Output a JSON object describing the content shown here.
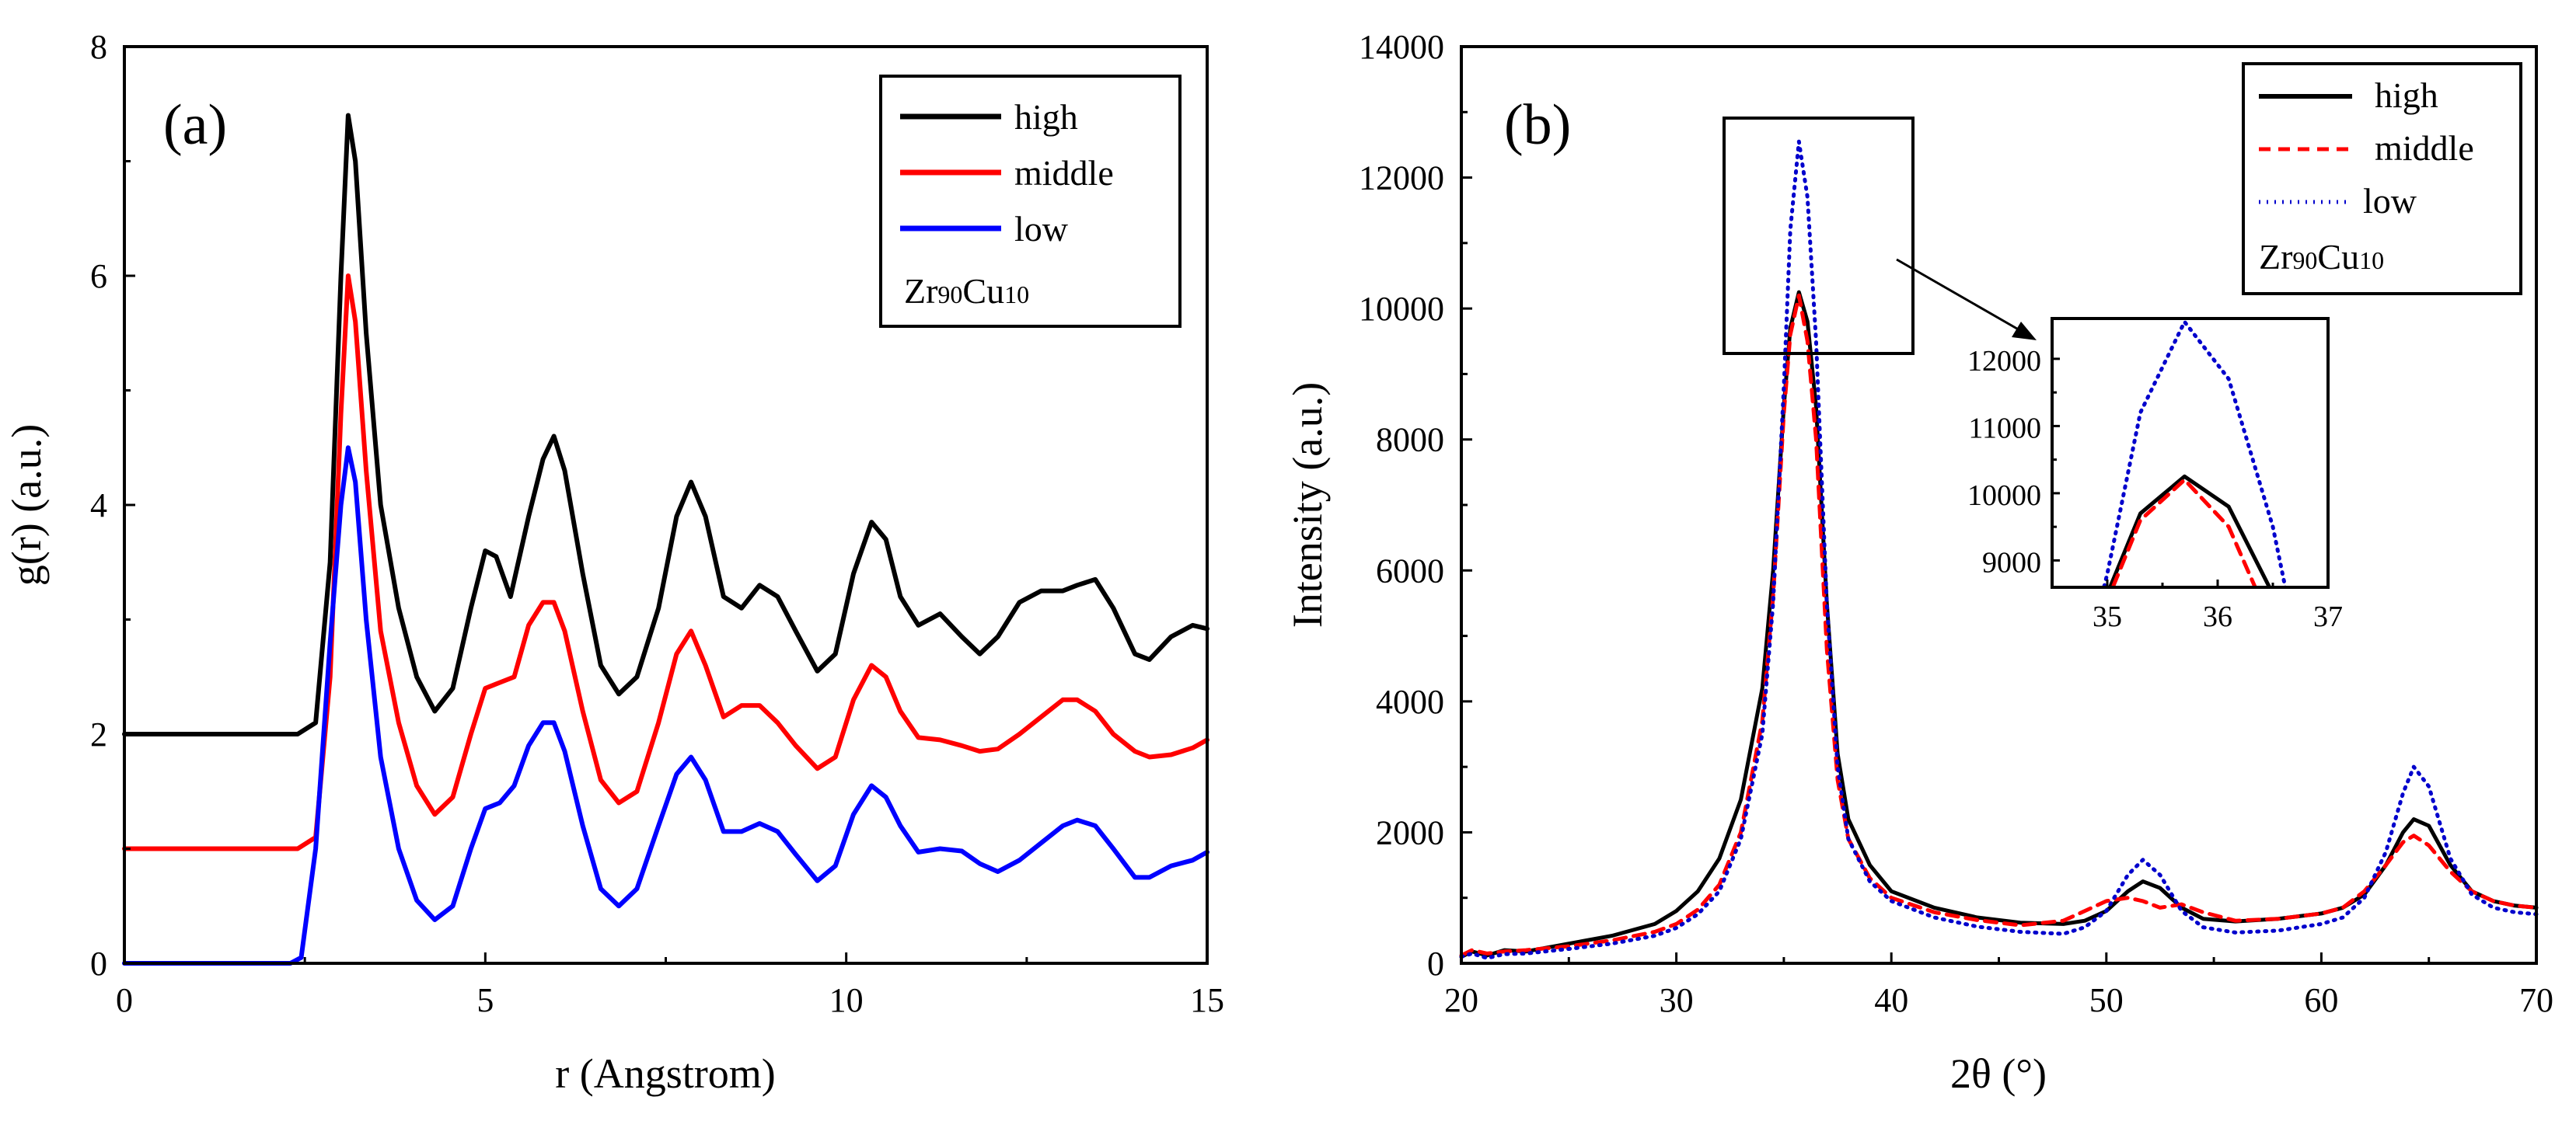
{
  "chart_data": [
    {
      "type": "line",
      "panel_label": "(a)",
      "xlabel": "r (Angstrom)",
      "ylabel": "g(r) (a.u.)",
      "xlim": [
        0,
        15
      ],
      "ylim": [
        0,
        8
      ],
      "xticks": [
        0,
        5,
        10,
        15
      ],
      "yticks": [
        0,
        2,
        4,
        6,
        8
      ],
      "legend_note": [
        "Zr",
        "90",
        "Cu",
        "10"
      ],
      "series": [
        {
          "name": "high",
          "color": "#000000",
          "style": "solid",
          "x": [
            0,
            2.4,
            2.65,
            2.85,
            3.0,
            3.1,
            3.2,
            3.35,
            3.55,
            3.8,
            4.05,
            4.3,
            4.55,
            4.8,
            5.0,
            5.15,
            5.35,
            5.6,
            5.8,
            5.95,
            6.1,
            6.35,
            6.6,
            6.85,
            7.1,
            7.4,
            7.65,
            7.85,
            8.05,
            8.3,
            8.55,
            8.8,
            9.05,
            9.3,
            9.6,
            9.85,
            10.1,
            10.35,
            10.55,
            10.75,
            11.0,
            11.3,
            11.6,
            11.85,
            12.1,
            12.4,
            12.7,
            13.0,
            13.2,
            13.45,
            13.7,
            14.0,
            14.2,
            14.5,
            14.8,
            15.0
          ],
          "y": [
            2.0,
            2.0,
            2.1,
            3.5,
            6.0,
            7.4,
            7.0,
            5.5,
            4.0,
            3.1,
            2.5,
            2.2,
            2.4,
            3.1,
            3.6,
            3.55,
            3.2,
            3.9,
            4.4,
            4.6,
            4.3,
            3.4,
            2.6,
            2.35,
            2.5,
            3.1,
            3.9,
            4.2,
            3.9,
            3.2,
            3.1,
            3.3,
            3.2,
            2.9,
            2.55,
            2.7,
            3.4,
            3.85,
            3.7,
            3.2,
            2.95,
            3.05,
            2.85,
            2.7,
            2.85,
            3.15,
            3.25,
            3.25,
            3.3,
            3.35,
            3.1,
            2.7,
            2.65,
            2.85,
            2.95,
            2.92
          ]
        },
        {
          "name": "middle",
          "color": "#ff0000",
          "style": "solid",
          "x": [
            0,
            2.4,
            2.65,
            2.85,
            3.0,
            3.1,
            3.2,
            3.35,
            3.55,
            3.8,
            4.05,
            4.3,
            4.55,
            4.8,
            5.0,
            5.2,
            5.4,
            5.6,
            5.8,
            5.95,
            6.1,
            6.35,
            6.6,
            6.85,
            7.1,
            7.4,
            7.65,
            7.85,
            8.05,
            8.3,
            8.55,
            8.8,
            9.05,
            9.3,
            9.6,
            9.85,
            10.1,
            10.35,
            10.55,
            10.75,
            11.0,
            11.3,
            11.6,
            11.85,
            12.1,
            12.4,
            12.7,
            13.0,
            13.2,
            13.45,
            13.7,
            14.0,
            14.2,
            14.5,
            14.8,
            15.0
          ],
          "y": [
            1.0,
            1.0,
            1.1,
            2.5,
            4.8,
            6.0,
            5.6,
            4.3,
            2.9,
            2.1,
            1.55,
            1.3,
            1.45,
            2.0,
            2.4,
            2.45,
            2.5,
            2.95,
            3.15,
            3.15,
            2.9,
            2.2,
            1.6,
            1.4,
            1.5,
            2.1,
            2.7,
            2.9,
            2.6,
            2.15,
            2.25,
            2.25,
            2.1,
            1.9,
            1.7,
            1.8,
            2.3,
            2.6,
            2.5,
            2.2,
            1.97,
            1.95,
            1.9,
            1.85,
            1.87,
            2.0,
            2.15,
            2.3,
            2.3,
            2.2,
            2.0,
            1.85,
            1.8,
            1.82,
            1.88,
            1.95
          ]
        },
        {
          "name": "low",
          "color": "#0000ff",
          "style": "solid",
          "x": [
            0,
            2.3,
            2.45,
            2.65,
            2.85,
            3.0,
            3.1,
            3.2,
            3.35,
            3.55,
            3.8,
            4.05,
            4.3,
            4.55,
            4.8,
            5.0,
            5.2,
            5.4,
            5.6,
            5.8,
            5.95,
            6.1,
            6.35,
            6.6,
            6.85,
            7.1,
            7.4,
            7.65,
            7.85,
            8.05,
            8.3,
            8.55,
            8.8,
            9.05,
            9.3,
            9.6,
            9.85,
            10.1,
            10.35,
            10.55,
            10.75,
            11.0,
            11.3,
            11.6,
            11.85,
            12.1,
            12.4,
            12.7,
            13.0,
            13.2,
            13.45,
            13.7,
            14.0,
            14.2,
            14.5,
            14.8,
            15.0
          ],
          "y": [
            0,
            0,
            0.05,
            1.0,
            2.8,
            4.0,
            4.5,
            4.2,
            3.0,
            1.8,
            1.0,
            0.55,
            0.38,
            0.5,
            1.0,
            1.35,
            1.4,
            1.55,
            1.9,
            2.1,
            2.1,
            1.85,
            1.2,
            0.65,
            0.5,
            0.65,
            1.2,
            1.65,
            1.8,
            1.6,
            1.15,
            1.15,
            1.22,
            1.15,
            0.95,
            0.72,
            0.85,
            1.3,
            1.55,
            1.45,
            1.2,
            0.97,
            1.0,
            0.98,
            0.87,
            0.8,
            0.9,
            1.05,
            1.2,
            1.25,
            1.2,
            1.0,
            0.75,
            0.75,
            0.85,
            0.9,
            0.97
          ]
        }
      ]
    },
    {
      "type": "line",
      "panel_label": "(b)",
      "xlabel": "2θ (°)",
      "ylabel": "Intensity (a.u.)",
      "xlim": [
        20,
        70
      ],
      "ylim": [
        0,
        14000
      ],
      "xticks": [
        20,
        30,
        40,
        50,
        60,
        70
      ],
      "yticks": [
        0,
        2000,
        4000,
        6000,
        8000,
        10000,
        12000,
        14000
      ],
      "legend_note": [
        "Zr",
        "90",
        "Cu",
        "10"
      ],
      "series": [
        {
          "name": "high",
          "color": "#000000",
          "style": "solid",
          "x": [
            20,
            20.5,
            21.2,
            22,
            23,
            25,
            27,
            29,
            30,
            31,
            32,
            33,
            34,
            34.5,
            35,
            35.3,
            35.7,
            36.1,
            36.5,
            37,
            37.5,
            38,
            39,
            40,
            42,
            44,
            46,
            48,
            49,
            50,
            51,
            51.7,
            52.5,
            53.5,
            54.5,
            56,
            58,
            60,
            61,
            62,
            63,
            63.8,
            64.3,
            65,
            66,
            67,
            68,
            69,
            70
          ],
          "y": [
            100,
            180,
            120,
            200,
            180,
            300,
            420,
            600,
            800,
            1100,
            1600,
            2500,
            4200,
            6000,
            8500,
            9700,
            10250,
            9800,
            8500,
            5500,
            3200,
            2200,
            1500,
            1100,
            850,
            700,
            620,
            600,
            650,
            800,
            1100,
            1250,
            1150,
            850,
            680,
            640,
            680,
            760,
            850,
            1050,
            1500,
            2000,
            2200,
            2100,
            1500,
            1100,
            950,
            880,
            850
          ]
        },
        {
          "name": "middle",
          "color": "#ff0000",
          "style": "dashed",
          "x": [
            20,
            20.5,
            21.2,
            22,
            23,
            25,
            27,
            29,
            30,
            31,
            32,
            33,
            34,
            34.5,
            35,
            35.3,
            35.7,
            36.1,
            36.5,
            37,
            37.5,
            38,
            39,
            40,
            42,
            44,
            46,
            48,
            49,
            50,
            51,
            51.7,
            52.5,
            53.5,
            54.5,
            56,
            58,
            60,
            61,
            62,
            63,
            63.8,
            64.3,
            65,
            66,
            67,
            68,
            69,
            70
          ],
          "y": [
            120,
            200,
            150,
            180,
            200,
            260,
            350,
            480,
            600,
            820,
            1200,
            2000,
            3700,
            5600,
            8400,
            9600,
            10200,
            9500,
            8000,
            4800,
            2800,
            1900,
            1300,
            1000,
            780,
            660,
            580,
            650,
            800,
            950,
            1000,
            950,
            850,
            900,
            780,
            650,
            680,
            760,
            850,
            1100,
            1500,
            1850,
            1950,
            1800,
            1400,
            1100,
            950,
            880,
            850
          ]
        },
        {
          "name": "low",
          "color": "#0000cc",
          "style": "dotted",
          "x": [
            20,
            20.5,
            21.2,
            22,
            23,
            25,
            27,
            29,
            30,
            31,
            32,
            33,
            34,
            34.5,
            35,
            35.3,
            35.7,
            36.1,
            36.5,
            37,
            37.5,
            38,
            39,
            40,
            42,
            44,
            46,
            48,
            49,
            50,
            51,
            51.7,
            52.5,
            53.5,
            54.5,
            56,
            58,
            60,
            61,
            62,
            63,
            63.8,
            64.3,
            65,
            66,
            67,
            68,
            69,
            70
          ],
          "y": [
            100,
            150,
            80,
            140,
            150,
            220,
            300,
            420,
            540,
            750,
            1100,
            1900,
            3500,
            5500,
            8800,
            11200,
            12550,
            11700,
            9500,
            5500,
            3000,
            1900,
            1250,
            950,
            700,
            560,
            480,
            450,
            550,
            800,
            1350,
            1580,
            1350,
            800,
            550,
            470,
            500,
            600,
            700,
            1000,
            1700,
            2600,
            3000,
            2700,
            1600,
            1050,
            850,
            780,
            750
          ]
        }
      ],
      "inset": {
        "xlim": [
          34.5,
          37
        ],
        "ylim": [
          8600,
          12600
        ],
        "xticks": [
          35,
          36,
          37
        ],
        "yticks": [
          9000,
          10000,
          11000,
          12000
        ]
      }
    }
  ]
}
